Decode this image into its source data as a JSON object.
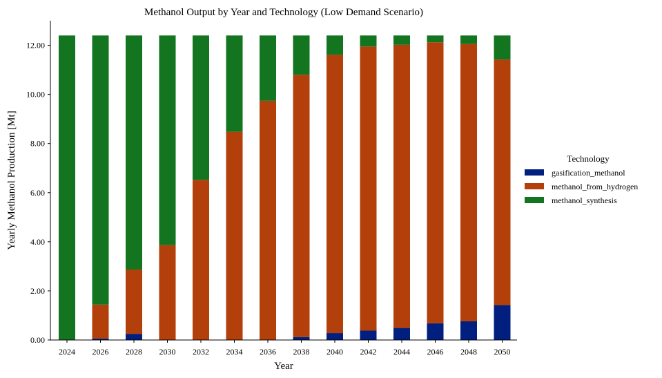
{
  "chart_data": {
    "type": "bar",
    "stacked": true,
    "title": "Methanol Output by Year and Technology (Low Demand Scenario)",
    "xlabel": "Year",
    "ylabel": "Yearly Methanol Production [Mt]",
    "ylim": [
      0,
      13
    ],
    "yticks": [
      "0.00",
      "2.00",
      "4.00",
      "6.00",
      "8.00",
      "10.00",
      "12.00"
    ],
    "grid": false,
    "legend_position": "right",
    "legend_title": "Technology",
    "categories": [
      "2024",
      "2026",
      "2028",
      "2030",
      "2032",
      "2034",
      "2036",
      "2038",
      "2040",
      "2042",
      "2044",
      "2046",
      "2048",
      "2050"
    ],
    "series": [
      {
        "name": "gasification_methanol",
        "color": "#001f7f",
        "values": [
          0,
          0.06,
          0.25,
          0,
          0,
          0,
          0,
          0.12,
          0.28,
          0.38,
          0.49,
          0.68,
          0.76,
          1.42
        ]
      },
      {
        "name": "methanol_from_hydrogen",
        "color": "#b3400b",
        "values": [
          0,
          1.38,
          2.62,
          3.86,
          6.52,
          8.48,
          9.74,
          10.68,
          11.33,
          11.57,
          11.53,
          11.44,
          11.29,
          10.0
        ]
      },
      {
        "name": "methanol_synthesis",
        "color": "#137520",
        "values": [
          12.4,
          10.96,
          9.53,
          8.54,
          5.88,
          3.92,
          2.66,
          1.6,
          0.79,
          0.45,
          0.38,
          0.28,
          0.35,
          0.98
        ]
      }
    ]
  }
}
